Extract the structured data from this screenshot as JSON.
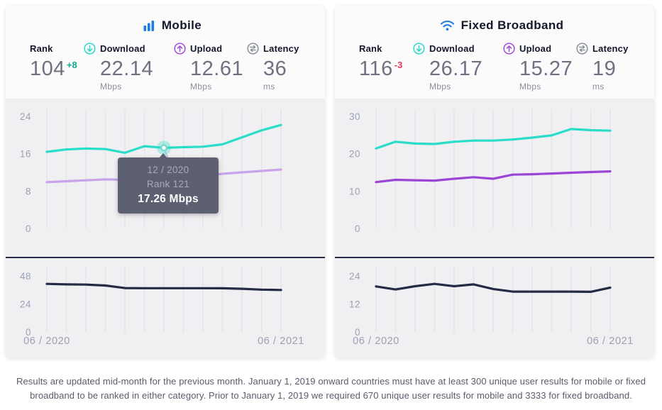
{
  "colors": {
    "accent_blue": "#1f7ce4",
    "teal": "#29ddc8",
    "purple": "#9a45d6",
    "purple_dimmed": "#c9a3e9",
    "navy_line": "#262b45",
    "rank_up_delta": "#0caa92",
    "rank_down_delta": "#e8355f",
    "tooltip_bg": "#585b6c",
    "panel_header_bg": "#fbfbfc",
    "chart_bg": "#f0f0f2"
  },
  "panels": [
    {
      "title": "Mobile",
      "title_icon": "signal-bars-icon",
      "stats": {
        "rank": {
          "label": "Rank",
          "value": "104",
          "delta": "+8"
        },
        "download": {
          "label": "Download",
          "value": "22.14",
          "unit": "Mbps"
        },
        "upload": {
          "label": "Upload",
          "value": "12.61",
          "unit": "Mbps"
        },
        "latency": {
          "label": "Latency",
          "value": "36",
          "unit": "ms"
        }
      },
      "tooltip": {
        "period": "12 / 2020",
        "rank": "Rank 121",
        "value": "17.26 Mbps"
      }
    },
    {
      "title": "Fixed Broadband",
      "title_icon": "wifi-icon",
      "stats": {
        "rank": {
          "label": "Rank",
          "value": "116",
          "delta": "-3"
        },
        "download": {
          "label": "Download",
          "value": "26.17",
          "unit": "Mbps"
        },
        "upload": {
          "label": "Upload",
          "value": "15.27",
          "unit": "Mbps"
        },
        "latency": {
          "label": "Latency",
          "value": "19",
          "unit": "ms"
        }
      }
    }
  ],
  "chart_data": [
    {
      "id": "mobile-speeds",
      "type": "line",
      "title": "Mobile download and upload speed over time (Mbps)",
      "x": [
        "06/2020",
        "07/2020",
        "08/2020",
        "09/2020",
        "10/2020",
        "11/2020",
        "12/2020",
        "01/2021",
        "02/2021",
        "03/2021",
        "04/2021",
        "05/2021",
        "06/2021"
      ],
      "ymax": 24,
      "yticks": [
        0,
        8,
        16,
        24
      ],
      "grid": "vertical",
      "series": [
        {
          "name": "Download",
          "color": "#29ddc8",
          "values": [
            16.4,
            16.9,
            17.1,
            17.0,
            16.2,
            17.6,
            17.26,
            17.4,
            17.5,
            18.0,
            19.5,
            21.0,
            22.14
          ]
        },
        {
          "name": "Upload",
          "color": "#c9a3e9",
          "values": [
            9.9,
            10.1,
            10.3,
            10.5,
            10.4,
            10.5,
            10.6,
            10.9,
            11.3,
            11.7,
            12.0,
            12.3,
            12.61
          ]
        }
      ],
      "marker": {
        "series": 0,
        "index": 6
      }
    },
    {
      "id": "mobile-latency",
      "type": "line",
      "title": "Mobile latency over time (ms)",
      "x": [
        "06/2020",
        "07/2020",
        "08/2020",
        "09/2020",
        "10/2020",
        "11/2020",
        "12/2020",
        "01/2021",
        "02/2021",
        "03/2021",
        "04/2021",
        "05/2021",
        "06/2021"
      ],
      "ymax": 48,
      "yticks": [
        0,
        24,
        48
      ],
      "grid": "vertical",
      "xlabels": [
        "06 / 2020",
        "06 / 2021"
      ],
      "series": [
        {
          "name": "Latency",
          "color": "#262b45",
          "values": [
            41.2,
            40.8,
            40.6,
            39.8,
            37.6,
            37.5,
            37.5,
            37.5,
            37.5,
            37.4,
            37.0,
            36.3,
            36.0
          ]
        }
      ]
    },
    {
      "id": "fixed-speeds",
      "type": "line",
      "title": "Fixed broadband download and upload speed over time (Mbps)",
      "x": [
        "06/2020",
        "07/2020",
        "08/2020",
        "09/2020",
        "10/2020",
        "11/2020",
        "12/2020",
        "01/2021",
        "02/2021",
        "03/2021",
        "04/2021",
        "05/2021",
        "06/2021"
      ],
      "ymax": 30,
      "yticks": [
        0,
        10,
        20,
        30
      ],
      "grid": "vertical",
      "series": [
        {
          "name": "Download",
          "color": "#29ddc8",
          "values": [
            21.4,
            23.2,
            22.7,
            22.6,
            23.2,
            23.5,
            23.5,
            23.8,
            24.3,
            24.9,
            26.6,
            26.3,
            26.17
          ]
        },
        {
          "name": "Upload",
          "color": "#9a45d6",
          "values": [
            12.4,
            13.0,
            12.9,
            12.8,
            13.3,
            13.7,
            13.3,
            14.4,
            14.5,
            14.7,
            14.9,
            15.1,
            15.27
          ]
        }
      ]
    },
    {
      "id": "fixed-latency",
      "type": "line",
      "title": "Fixed broadband latency over time (ms)",
      "x": [
        "06/2020",
        "07/2020",
        "08/2020",
        "09/2020",
        "10/2020",
        "11/2020",
        "12/2020",
        "01/2021",
        "02/2021",
        "03/2021",
        "04/2021",
        "05/2021",
        "06/2021"
      ],
      "ymax": 24,
      "yticks": [
        0,
        12,
        24
      ],
      "grid": "vertical",
      "xlabels": [
        "06 / 2020",
        "06 / 2021"
      ],
      "series": [
        {
          "name": "Latency",
          "color": "#262b45",
          "values": [
            19.5,
            18.2,
            19.6,
            20.6,
            19.6,
            20.4,
            18.4,
            17.3,
            17.3,
            17.3,
            17.3,
            17.2,
            19.0
          ]
        }
      ]
    }
  ],
  "footer": "Results are updated mid-month for the previous month. January 1, 2019 onward countries must have at least 300 unique user results for mobile or fixed broadband to be ranked in either category. Prior to January 1, 2019 we required 670 unique user results for mobile and 3333 for fixed broadband."
}
